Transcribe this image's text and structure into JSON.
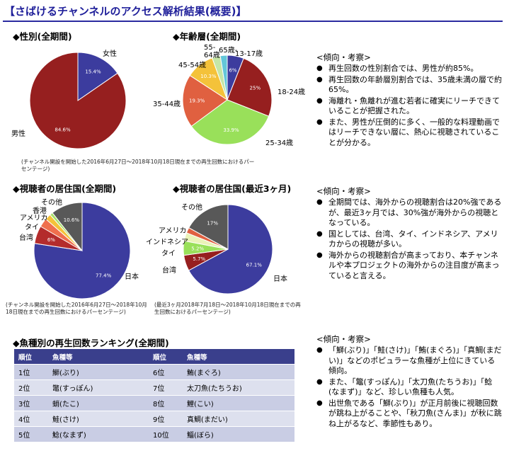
{
  "title": "【さばけるチャンネルのアクセス解析結果(概要)】",
  "gender": {
    "heading": "◆性別(全期間)",
    "note": "(チャンネル開設を開始した2016年6月27日～2018年10月18日現在までの再生回数におけるパーセンテージ)"
  },
  "age": {
    "heading": "◆年齢層(全期間)"
  },
  "country_all": {
    "heading": "◆視聴者の居住国(全期間)",
    "note": "(チャンネル開設を開始した2016年6月27日～2018年10月18日現在までの再生回数におけるパーセンテージ)"
  },
  "country_recent": {
    "heading": "◆視聴者の居住国(最近3ヶ月)",
    "note": "(最近3ヶ月2018年7月18日～2018年10月18日現在までの再生回数におけるパーセンテージ)"
  },
  "chart_data": [
    {
      "type": "pie",
      "title": "◆性別(全期間)",
      "labels": [
        "女性",
        "男性"
      ],
      "values": [
        15.4,
        84.6
      ],
      "value_labels": [
        "15.4%",
        "84.6%"
      ],
      "colors": [
        "#3c3c9e",
        "#961f1f"
      ]
    },
    {
      "type": "pie",
      "title": "◆年齢層(全期間)",
      "labels": [
        "13-17歳",
        "18-24歳",
        "25-34歳",
        "35-44歳",
        "45-54歳",
        "55-64歳",
        "65歳-"
      ],
      "values": [
        6,
        25,
        33.9,
        19.3,
        10.3,
        3,
        2.5
      ],
      "value_labels": [
        "6%",
        "25%",
        "33.9%",
        "19.3%",
        "10.3%",
        "",
        ""
      ],
      "colors": [
        "#3c3c9e",
        "#961f1f",
        "#99e05a",
        "#e06040",
        "#f4c23a",
        "#c5e6a6",
        "#63c7d9"
      ]
    },
    {
      "type": "pie",
      "title": "◆視聴者の居住国(全期間)",
      "labels": [
        "日本",
        "台湾",
        "タイ",
        "アメリカ",
        "香港",
        "その他"
      ],
      "values": [
        77.4,
        6,
        3,
        2,
        1,
        10.6
      ],
      "value_labels": [
        "77.4%",
        "6%",
        "",
        "",
        "",
        "10.6%"
      ],
      "colors": [
        "#3c3c9e",
        "#b42c2c",
        "#ef6f4d",
        "#f4c23a",
        "#a6e06b",
        "#585858"
      ]
    },
    {
      "type": "pie",
      "title": "◆視聴者の居住国(最近3ヶ月)",
      "labels": [
        "日本",
        "台湾",
        "タイ",
        "インドネシア",
        "アメリカ",
        "その他"
      ],
      "values": [
        67.1,
        5.7,
        5.2,
        3,
        2,
        17
      ],
      "value_labels": [
        "67.1%",
        "5.7%",
        "5.2%",
        "",
        "",
        "17%"
      ],
      "colors": [
        "#3c3c9e",
        "#961f1f",
        "#99e05a",
        "#eaf3b8",
        "#e06040",
        "#585858"
      ]
    }
  ],
  "observations": [
    {
      "heading": "<傾向・考察>",
      "bullets": [
        "再生回数の性別割合では、男性が約85%。",
        "再生回数の年齢層別割合では、35歳未満の層で約65%。",
        "海離れ・魚離れが進む若者に確実にリーチできていることが把握された。",
        "また、男性が圧倒的に多く、一般的な料理動画ではリーチできない層に、熱心に視聴されていることが分かる。"
      ]
    },
    {
      "heading": "<傾向・考察>",
      "bullets": [
        "全期間では、海外からの視聴割合は20%強であるが、最近3ヶ月では、30%強が海外からの視聴となっている。",
        "国としては、台湾、タイ、インドネシア、アメリカからの視聴が多い。",
        "海外からの視聴割合が高まっており、本チャンネルや本プロジェクトの海外からの注目度が高まっていると言える。"
      ]
    },
    {
      "heading": "<傾向・考察>",
      "bullets": [
        "「鰤(ぶり)」「鮭(さけ)」「鮪(まぐろ)」「真鯛(まだい)」などのポピュラーな魚種が上位にきている傾向。",
        "また、「鼈(すっぽん)」「太刀魚(たちうお)」「鯰(なまず)」など、珍しい魚種も人気。",
        "出世魚である「鰤(ぶり)」が正月前後に視聴回数が跳ね上がることや、「秋刀魚(さんま)」が秋に跳ね上がるなど、季節性もあり。"
      ]
    }
  ],
  "ranking": {
    "heading": "◆魚種別の再生回数ランキング(全期間)",
    "headers": [
      "順位",
      "魚種等",
      "順位",
      "魚種等"
    ],
    "rows": [
      [
        "1位",
        "鰤(ぶり)",
        "6位",
        "鮪(まぐろ)"
      ],
      [
        "2位",
        "鼈(すっぽん)",
        "7位",
        "太刀魚(たちうお)"
      ],
      [
        "3位",
        "蛸(たこ)",
        "8位",
        "鯉(こい)"
      ],
      [
        "4位",
        "鮭(さけ)",
        "9位",
        "真鯛(まだい)"
      ],
      [
        "5位",
        "鯰(なまず)",
        "10位",
        "鯔(ぼら)"
      ]
    ]
  }
}
